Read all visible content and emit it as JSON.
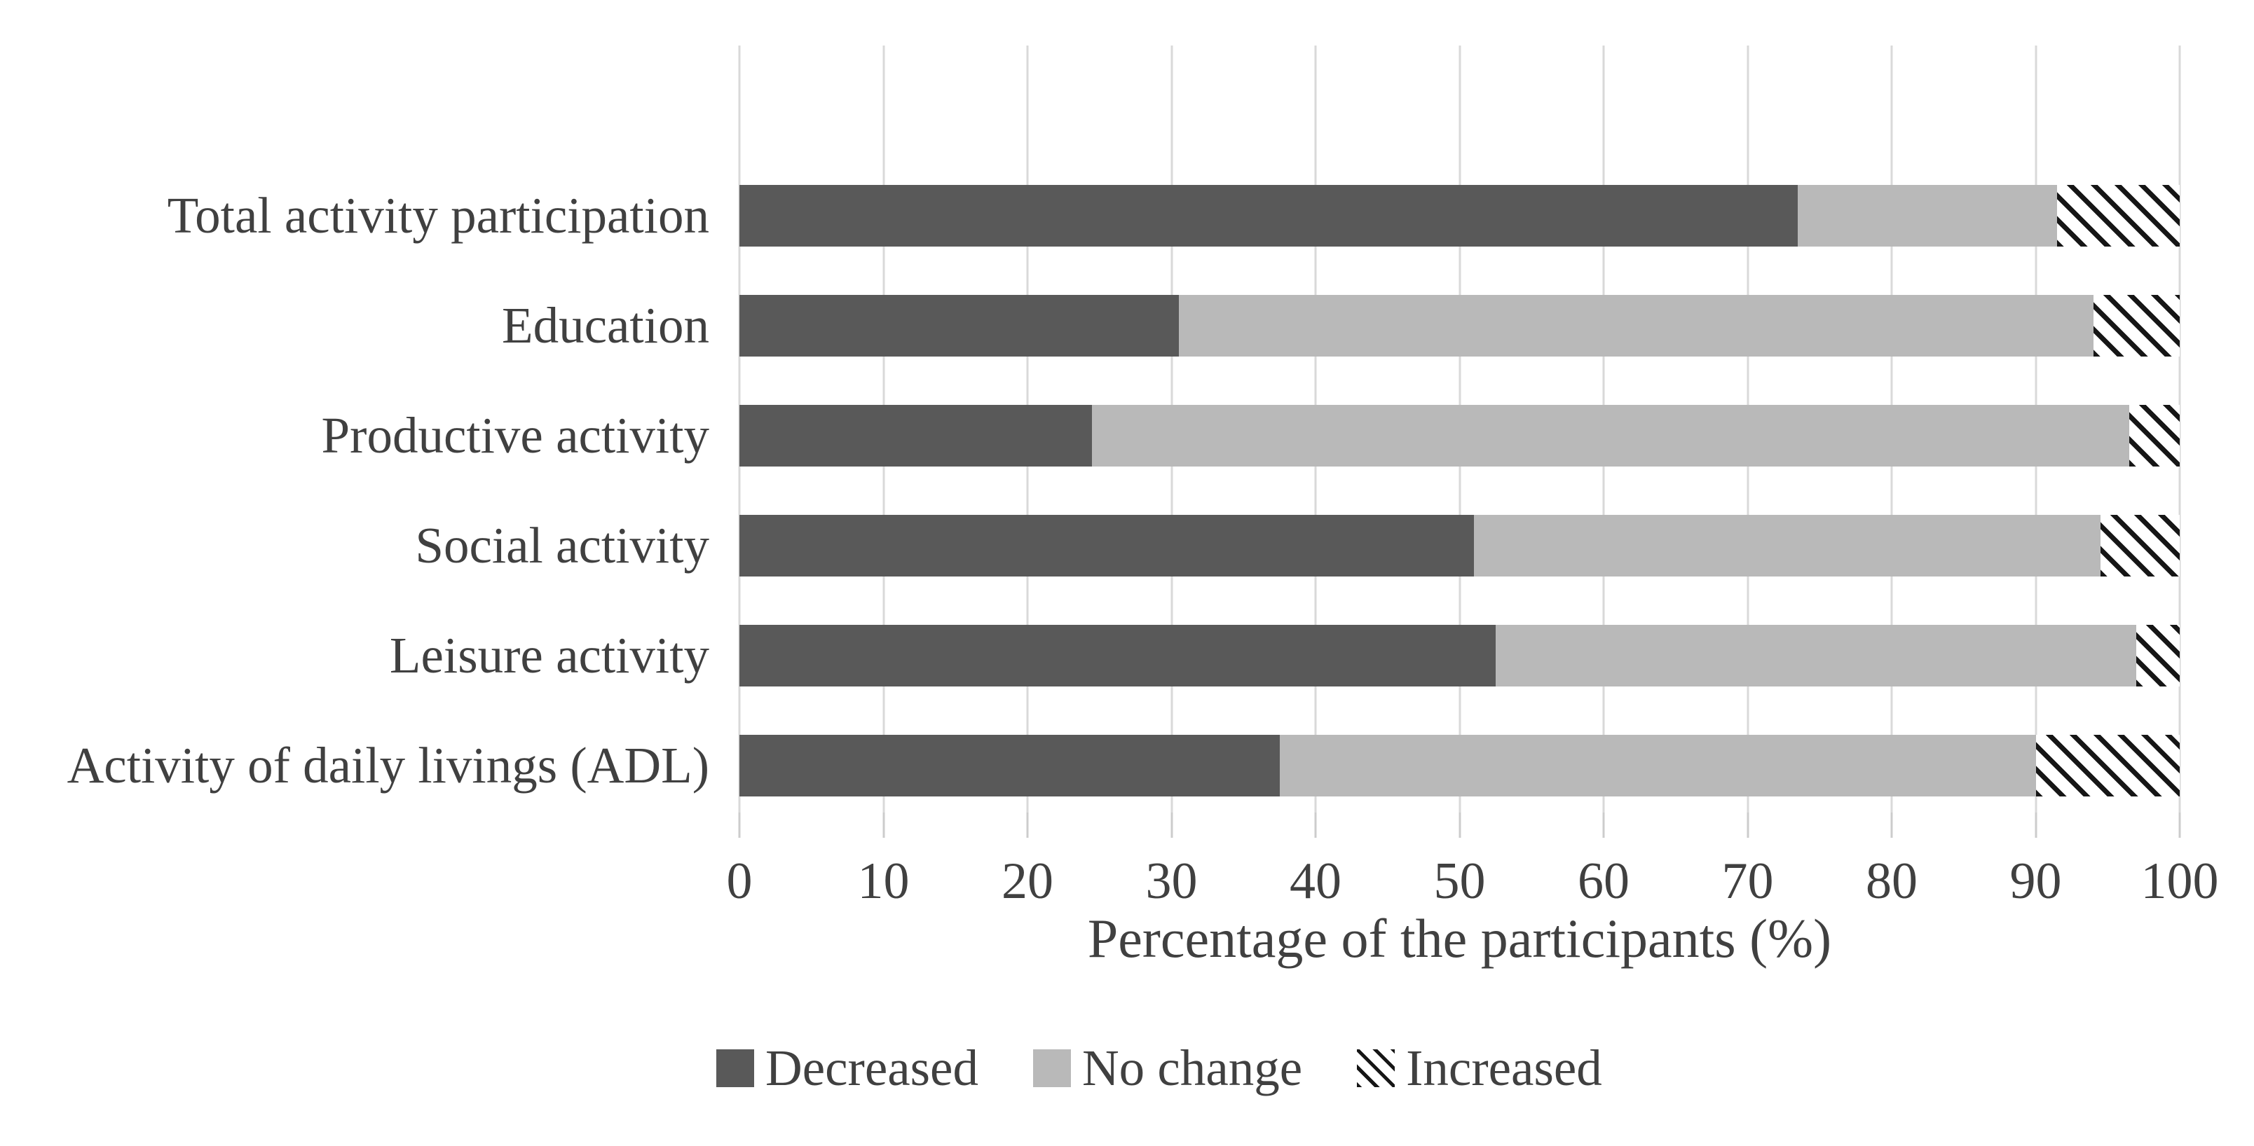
{
  "chart_data": {
    "type": "bar",
    "orientation": "horizontal",
    "stacked": true,
    "title": "",
    "xlabel": "Percentage of the participants (%)",
    "ylabel": "",
    "xlim": [
      0,
      100
    ],
    "xticks": [
      0,
      10,
      20,
      30,
      40,
      50,
      60,
      70,
      80,
      90,
      100
    ],
    "grid": "vertical",
    "legend_position": "bottom",
    "categories": [
      "Total activity participation",
      "Education",
      "Productive activity",
      "Social activity",
      "Leisure activity",
      "Activity of daily livings (ADL)"
    ],
    "series": [
      {
        "name": "Decreased",
        "pattern": "solid",
        "values": [
          73.5,
          30.5,
          24.5,
          51.0,
          52.5,
          37.5
        ]
      },
      {
        "name": "No change",
        "pattern": "solid",
        "values": [
          18.0,
          63.5,
          72.0,
          43.5,
          44.5,
          52.5
        ]
      },
      {
        "name": "Increased",
        "pattern": "diagonal-hatch",
        "values": [
          8.5,
          6.0,
          3.5,
          5.5,
          3.0,
          10.0
        ]
      }
    ]
  },
  "colors": {
    "decreased": "#595959",
    "no_change": "#b9b9b9",
    "increased_hatch_line": "#161616",
    "increased_hatch_bg": "#ffffff",
    "gridline": "#d9d9d9",
    "text": "#404040"
  },
  "legend": {
    "items": [
      {
        "label": "Decreased",
        "swatch": "dark-gray-square"
      },
      {
        "label": "No change",
        "swatch": "light-gray-square"
      },
      {
        "label": "Increased",
        "swatch": "diagonal-hatch-square"
      }
    ]
  }
}
